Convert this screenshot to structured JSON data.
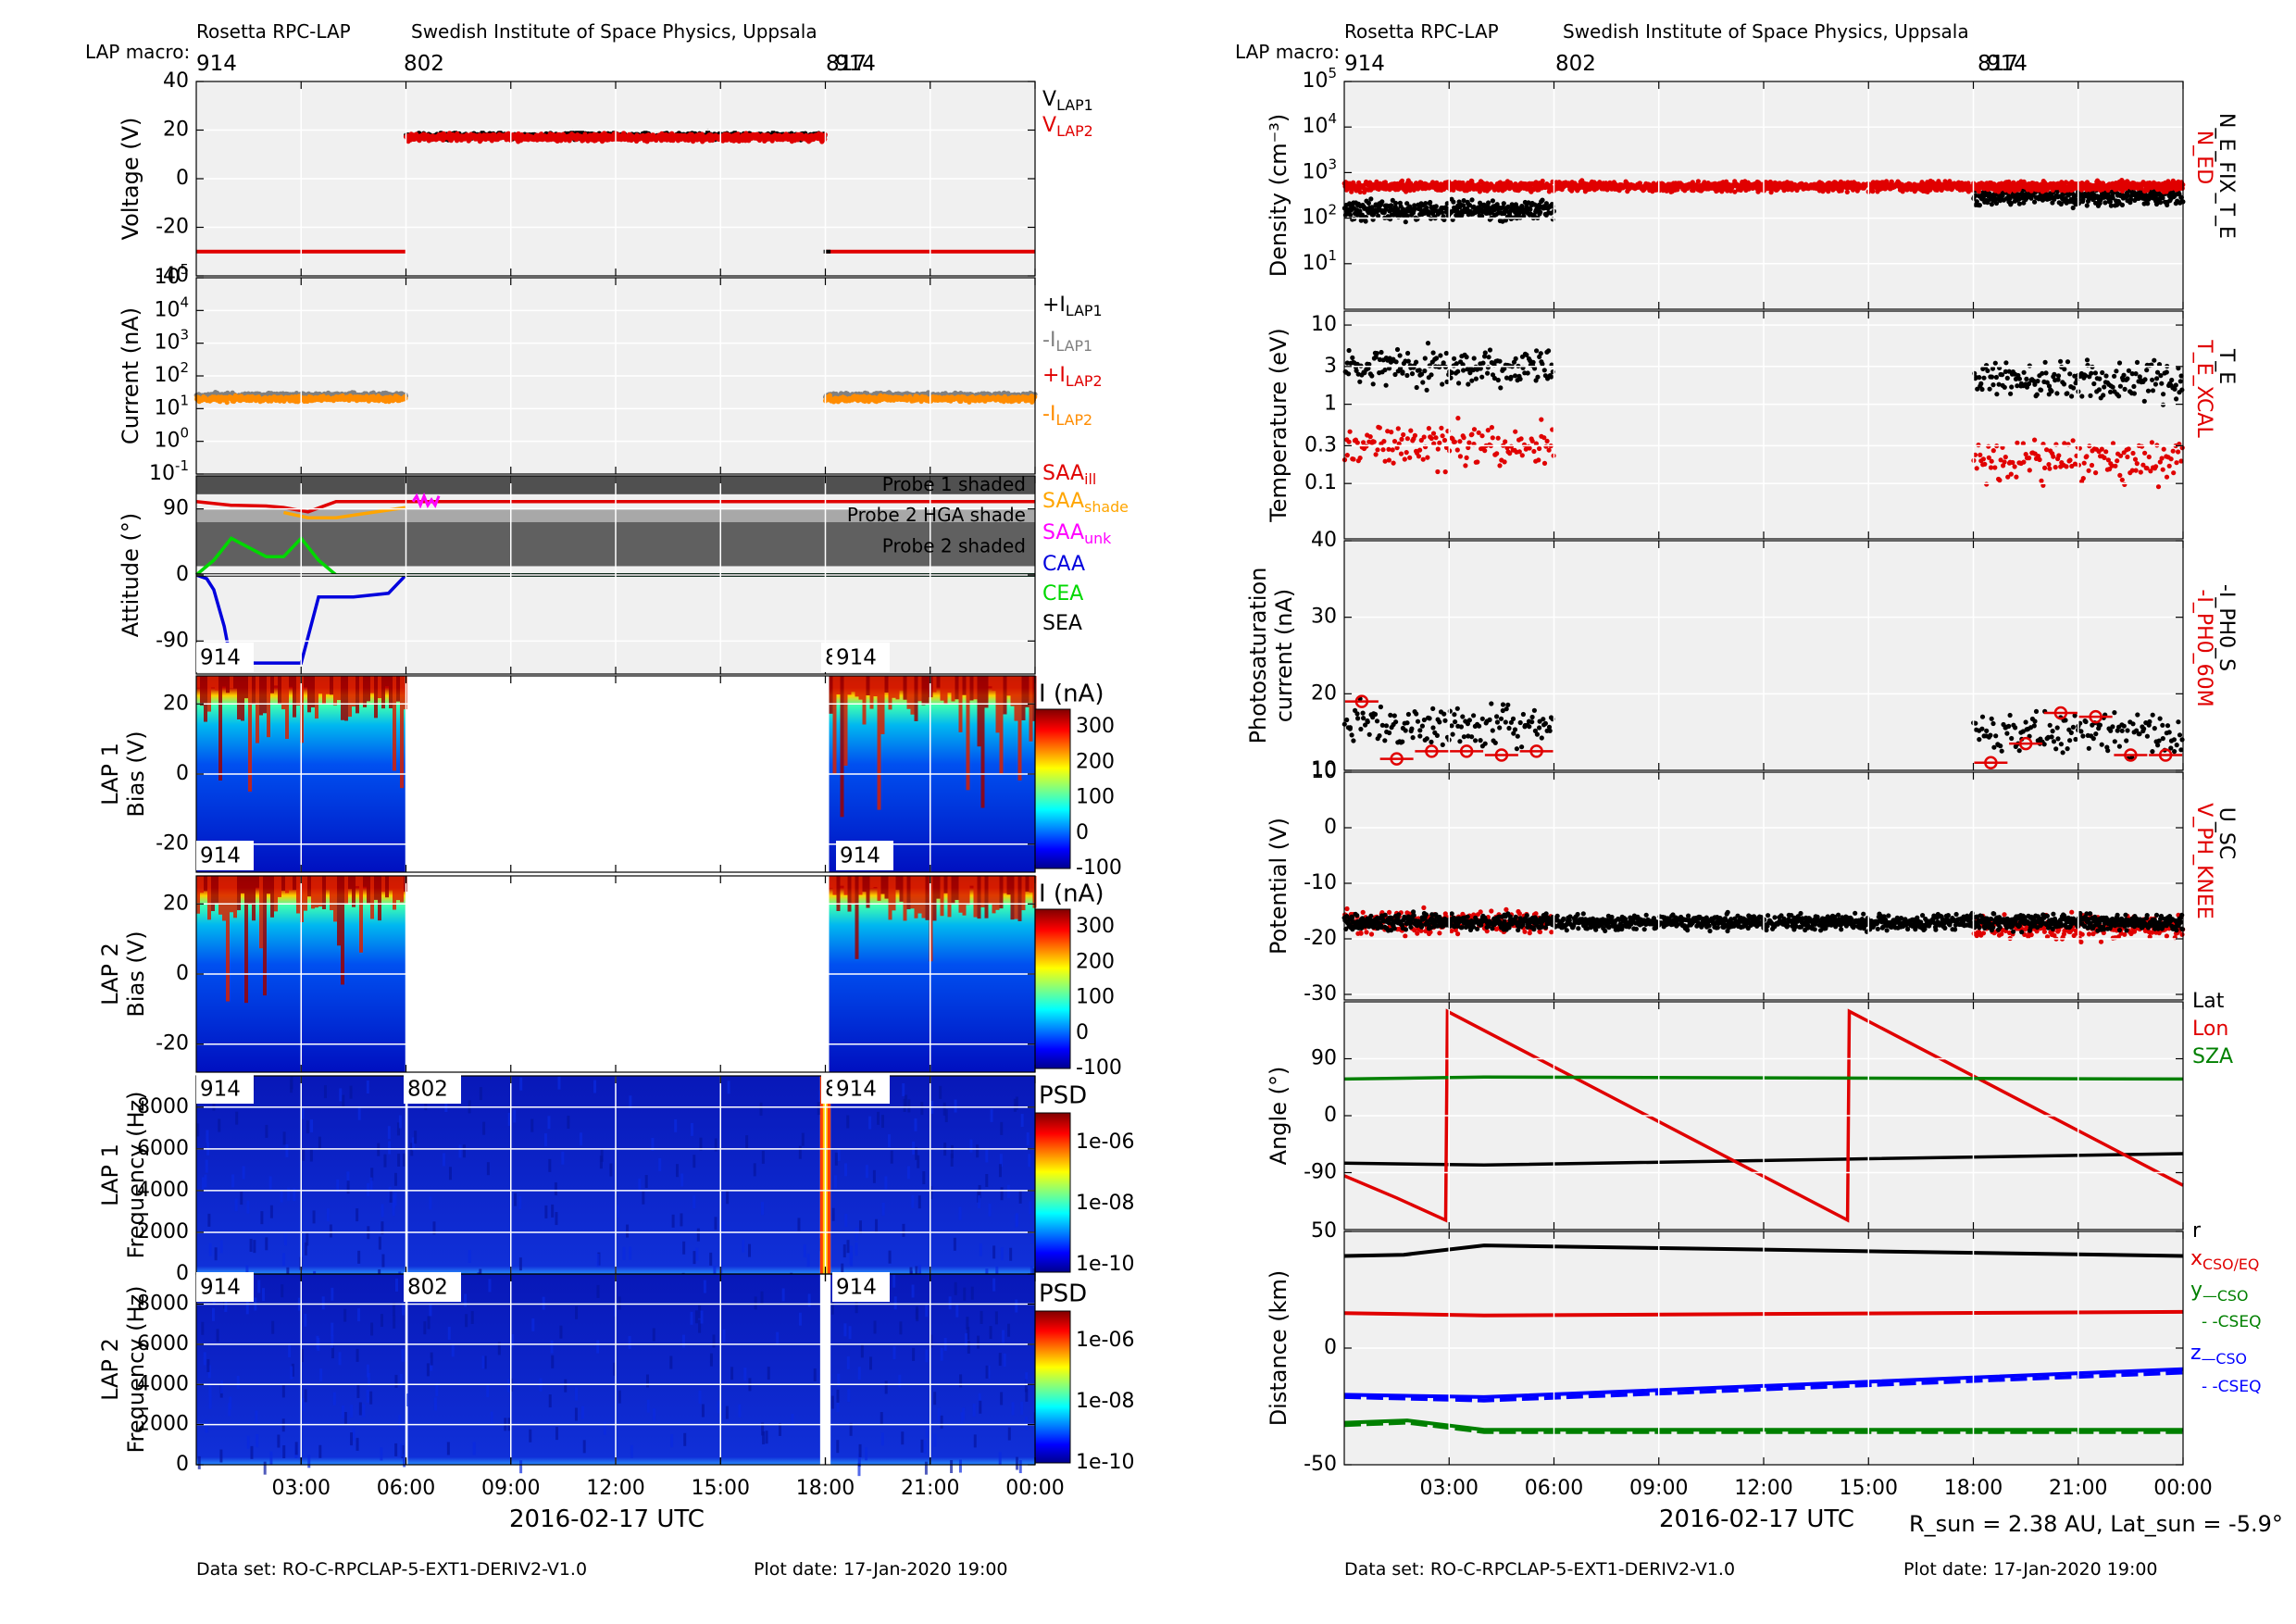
{
  "left_header": {
    "title": "Rosetta RPC-LAP",
    "institute": "Swedish Institute of Space Physics, Uppsala",
    "macro_label": "LAP macro:",
    "macros": [
      "914",
      "802",
      "817",
      "914"
    ],
    "dataset": "Data set: RO-C-RPCLAP-5-EXT1-DERIV2-V1.0",
    "plot_date": "Plot date: 17-Jan-2020 19:00",
    "date_label": "2016-02-17 UTC"
  },
  "right_header": {
    "title": "Rosetta RPC-LAP",
    "institute": "Swedish Institute of Space Physics, Uppsala",
    "macro_label": "LAP macro:",
    "macros": [
      "914",
      "802",
      "817",
      "914"
    ],
    "dataset": "Data set: RO-C-RPCLAP-5-EXT1-DERIV2-V1.0",
    "plot_date": "Plot date: 17-Jan-2020 19:00",
    "date_label": "2016-02-17 UTC",
    "sun_info": "R_sun = 2.38 AU, Lat_sun = -5.9°"
  },
  "time_axis": {
    "ticks": [
      "03:00",
      "06:00",
      "09:00",
      "12:00",
      "15:00",
      "18:00",
      "21:00",
      "00:00"
    ],
    "hours": [
      3,
      6,
      9,
      12,
      15,
      18,
      21,
      24
    ],
    "range_hours": [
      0,
      24
    ]
  },
  "macro_spans": [
    {
      "macro": "914",
      "start": 0,
      "end": 6.0
    },
    {
      "macro": "802",
      "start": 6.0,
      "end": 17.95
    },
    {
      "macro": "817",
      "start": 17.95,
      "end": 18.05
    },
    {
      "macro": "914",
      "start": 18.05,
      "end": 24
    }
  ],
  "chart_data": [
    {
      "type": "scatter",
      "panel": "Voltage",
      "ylabel": "Voltage (V)",
      "ylim": [
        -40,
        40
      ],
      "yticks": [
        "40",
        "20",
        "0",
        "-20",
        "-40"
      ],
      "legend": [
        "V_LAP1",
        "V_LAP2"
      ],
      "series": [
        {
          "name": "V_LAP1",
          "color": "#000000",
          "segments": [
            {
              "x": [
                6.0,
                18.0
              ],
              "y": 17.5,
              "noise": 2
            }
          ]
        },
        {
          "name": "V_LAP2",
          "color": "#e00000",
          "segments": [
            {
              "x": [
                0,
                6.0
              ],
              "y": -30
            },
            {
              "x": [
                6.0,
                18.0
              ],
              "y": 17,
              "noise": 2
            },
            {
              "x": [
                18.0,
                24
              ],
              "y": -30
            }
          ]
        }
      ]
    },
    {
      "type": "scatter",
      "panel": "Current",
      "ylabel": "Current (nA)",
      "yscale": "log",
      "ylim": [
        0.1,
        100000
      ],
      "yticks": [
        "10^-1",
        "10^0",
        "10^1",
        "10^2",
        "10^3",
        "10^4",
        "10^5"
      ],
      "legend": [
        "+I_LAP1",
        "-I_LAP1",
        "+I_LAP2",
        "-I_LAP2"
      ],
      "series": [
        {
          "name": "-I_LAP1",
          "color": "#808080",
          "segments": [
            {
              "x": [
                0,
                6.0
              ],
              "y": 25
            },
            {
              "x": [
                18.0,
                24
              ],
              "y": 25
            }
          ]
        },
        {
          "name": "-I_LAP2",
          "color": "#ff8c00",
          "segments": [
            {
              "x": [
                0,
                6.0
              ],
              "y": 20
            },
            {
              "x": [
                18.0,
                24
              ],
              "y": 20
            }
          ]
        }
      ]
    },
    {
      "type": "line",
      "panel": "Attitude",
      "ylabel": "Attitude (°)",
      "ylim": [
        -135,
        135
      ],
      "yticks": [
        "90",
        "0",
        "-90"
      ],
      "annotations": [
        "Probe 1 shaded",
        "Probe 2 HGA shade",
        "Probe 2 shaded"
      ],
      "legend": [
        "SAA_ill",
        "SAA_shade",
        "SAA_unk",
        "CAA",
        "CEA",
        "SEA"
      ],
      "series": [
        {
          "name": "SAA_ill",
          "color": "#e00000",
          "x": [
            0,
            1,
            2,
            2.5,
            3.2,
            4.0,
            6,
            24
          ],
          "y": [
            100,
            95,
            94,
            92,
            86,
            100,
            100,
            100
          ]
        },
        {
          "name": "SAA_shade",
          "color": "#ffa500",
          "x": [
            2.5,
            3.2,
            4.0,
            5.0,
            6.0
          ],
          "y": [
            85,
            78,
            78,
            85,
            92
          ]
        },
        {
          "name": "CAA",
          "color": "#0000dd",
          "x": [
            0,
            0.3,
            0.5,
            0.8,
            1.0,
            1.5,
            2.0,
            3.0,
            3.5,
            4.5,
            5.5,
            6.0,
            24
          ],
          "y": [
            0,
            -5,
            -20,
            -70,
            -120,
            -120,
            -120,
            -120,
            -30,
            -30,
            -25,
            0,
            0
          ]
        },
        {
          "name": "CEA",
          "color": "#00d800",
          "x": [
            0,
            0.5,
            1.0,
            2.0,
            2.5,
            3.0,
            3.5,
            4.0,
            24
          ],
          "y": [
            0,
            20,
            50,
            25,
            25,
            50,
            20,
            0,
            0
          ]
        },
        {
          "name": "SEA",
          "color": "#000000",
          "x": [
            0,
            24
          ],
          "y": [
            0,
            0
          ]
        }
      ]
    },
    {
      "type": "heatmap",
      "panel": "LAP 1 sweeps",
      "ylabel": "LAP 1 Bias (V)",
      "ylim": [
        -28,
        28
      ],
      "yticks": [
        "20",
        "0",
        "-20"
      ],
      "colorbar": {
        "label": "I (nA)",
        "ticks": [
          "300",
          "200",
          "100",
          "0",
          "-100"
        ],
        "range": [
          -100,
          350
        ]
      },
      "labels": [
        "914",
        "8",
        "914",
        "914",
        "914"
      ]
    },
    {
      "type": "heatmap",
      "panel": "LAP 2 sweeps",
      "ylabel": "LAP 2 Bias (V)",
      "ylim": [
        -28,
        28
      ],
      "yticks": [
        "20",
        "0",
        "-20"
      ],
      "colorbar": {
        "label": "I (nA)",
        "ticks": [
          "300",
          "200",
          "100",
          "0",
          "-100"
        ],
        "range": [
          -100,
          350
        ]
      }
    },
    {
      "type": "heatmap",
      "panel": "LAP 1 spectrogram",
      "ylabel": "LAP 1 Frequency (Hz)",
      "ylim": [
        0,
        9500
      ],
      "yticks": [
        "8000",
        "6000",
        "4000",
        "2000",
        "0"
      ],
      "colorbar": {
        "label": "PSD",
        "ticks": [
          "1e-06",
          "1e-08",
          "1e-10"
        ]
      },
      "labels": [
        "914",
        "802",
        "8",
        "914"
      ]
    },
    {
      "type": "heatmap",
      "panel": "LAP 2 spectrogram",
      "ylabel": "LAP 2 Frequency (Hz)",
      "ylim": [
        0,
        9500
      ],
      "yticks": [
        "8000",
        "6000",
        "4000",
        "2000",
        "0"
      ],
      "colorbar": {
        "label": "PSD",
        "ticks": [
          "1e-06",
          "1e-08",
          "1e-10"
        ]
      },
      "labels": [
        "914",
        "802",
        "914"
      ]
    },
    {
      "type": "scatter",
      "panel": "Density",
      "ylabel": "Density (cm^-3)",
      "yscale": "log",
      "ylim": [
        1,
        100000
      ],
      "yticks": [
        "10^5",
        "10^4",
        "10^3",
        "10^2",
        "10^1"
      ],
      "legend": [
        "N_ED",
        "N_E_FIX_T_E"
      ],
      "series": [
        {
          "name": "N_E_FIX_T_E",
          "color": "#000000",
          "segments": [
            {
              "x": [
                0,
                6.0
              ],
              "y": 150
            },
            {
              "x": [
                18.0,
                24
              ],
              "y": 300
            }
          ]
        },
        {
          "name": "N_ED",
          "color": "#e00000",
          "segments": [
            {
              "x": [
                0,
                24
              ],
              "y": 500
            }
          ]
        }
      ]
    },
    {
      "type": "scatter",
      "panel": "Temperature",
      "ylabel": "Temperature (eV)",
      "yscale": "log",
      "ylim": [
        0.02,
        15
      ],
      "yticks": [
        "10",
        "3",
        "1",
        "0.3",
        "0.1"
      ],
      "legend": [
        "T_E_XCAL",
        "T_E"
      ],
      "series": [
        {
          "name": "T_E",
          "color": "#000000",
          "segments": [
            {
              "x": [
                0,
                6.0
              ],
              "y": 3
            },
            {
              "x": [
                18.0,
                24
              ],
              "y": 2
            }
          ]
        },
        {
          "name": "T_E_XCAL",
          "color": "#e00000",
          "segments": [
            {
              "x": [
                0,
                6.0
              ],
              "y": 0.3
            },
            {
              "x": [
                18.0,
                24
              ],
              "y": 0.2
            }
          ]
        }
      ]
    },
    {
      "type": "scatter",
      "panel": "Photosaturation",
      "ylabel": "Photosaturation current (nA)",
      "ylim": [
        10,
        40
      ],
      "yticks": [
        "40",
        "30",
        "20",
        "10"
      ],
      "legend": [
        "-I_PH0_60M",
        "-I_PH0_S"
      ],
      "series": [
        {
          "name": "-I_PH0_S",
          "color": "#000000",
          "segments": [
            {
              "x": [
                0,
                6.0
              ],
              "y": 16
            },
            {
              "x": [
                18.0,
                24
              ],
              "y": 15
            }
          ]
        },
        {
          "name": "-I_PH0_60M",
          "color": "#e00000",
          "x": [
            0.5,
            1.5,
            2.5,
            3.5,
            4.5,
            5.5,
            18.5,
            19.5,
            20.5,
            21.5,
            22.5,
            23.5
          ],
          "y": [
            19,
            11.5,
            12.5,
            12.5,
            12,
            12.5,
            11,
            13.5,
            17.5,
            17,
            12,
            12
          ]
        }
      ]
    },
    {
      "type": "scatter",
      "panel": "Potential",
      "ylabel": "Potential (V)",
      "ylim": [
        -31,
        10
      ],
      "yticks": [
        "10",
        "0",
        "-10",
        "-20",
        "-30"
      ],
      "legend": [
        "V_PH_KNEE",
        "U_SC"
      ],
      "series": [
        {
          "name": "U_SC",
          "color": "#000000",
          "segments": [
            {
              "x": [
                0,
                24
              ],
              "y": -17
            }
          ]
        },
        {
          "name": "V_PH_KNEE",
          "color": "#e00000",
          "segments": [
            {
              "x": [
                0,
                6.0
              ],
              "y": -17
            },
            {
              "x": [
                18.0,
                24
              ],
              "y": -18
            }
          ]
        }
      ]
    },
    {
      "type": "line",
      "panel": "Angle",
      "ylabel": "Angle (°)",
      "ylim": [
        -180,
        180
      ],
      "yticks": [
        "90",
        "0",
        "-90"
      ],
      "legend": [
        "Lat",
        "Lon",
        "SZA"
      ],
      "series": [
        {
          "name": "Lat",
          "color": "#000000",
          "x": [
            0,
            4,
            24
          ],
          "y": [
            -75,
            -78,
            -60
          ]
        },
        {
          "name": "Lon",
          "color": "#e00000",
          "x": [
            0,
            1.5,
            2.9,
            2.95,
            14.4,
            14.45,
            24
          ],
          "y": [
            -95,
            -130,
            -165,
            165,
            -165,
            165,
            -110
          ]
        },
        {
          "name": "SZA",
          "color": "#008000",
          "x": [
            0,
            4,
            24
          ],
          "y": [
            58,
            61,
            58
          ]
        }
      ]
    },
    {
      "type": "line",
      "panel": "Distance",
      "ylabel": "Distance (km)",
      "ylim": [
        -50,
        50
      ],
      "yticks": [
        "50",
        "0",
        "-50"
      ],
      "legend": [
        "r",
        "x_CSO/EQ",
        "y_CSO",
        "y_CSEQ",
        "z_CSO",
        "z_CSEQ"
      ],
      "series": [
        {
          "name": "r",
          "color": "#000000",
          "x": [
            0,
            1.7,
            4,
            24
          ],
          "y": [
            39.5,
            40,
            44,
            39.5
          ]
        },
        {
          "name": "x_CSO/EQ",
          "color": "#e00000",
          "x": [
            0,
            4,
            24
          ],
          "y": [
            15,
            14,
            15.5
          ]
        },
        {
          "name": "y_CSO",
          "color": "#008000",
          "x": [
            0,
            1.8,
            4,
            24
          ],
          "y": [
            -32,
            -31,
            -35,
            -35
          ]
        },
        {
          "name": "y_CSEQ",
          "color": "#008000",
          "dashed": true,
          "x": [
            0,
            1.8,
            4,
            24
          ],
          "y": [
            -33,
            -32,
            -36,
            -36
          ]
        },
        {
          "name": "z_CSO",
          "color": "#0000ff",
          "x": [
            0,
            4,
            24
          ],
          "y": [
            -20,
            -21,
            -9
          ]
        },
        {
          "name": "z_CSEQ",
          "color": "#0000ff",
          "dashed": true,
          "x": [
            0,
            4,
            24
          ],
          "y": [
            -21,
            -22.5,
            -10.5
          ]
        }
      ]
    }
  ]
}
